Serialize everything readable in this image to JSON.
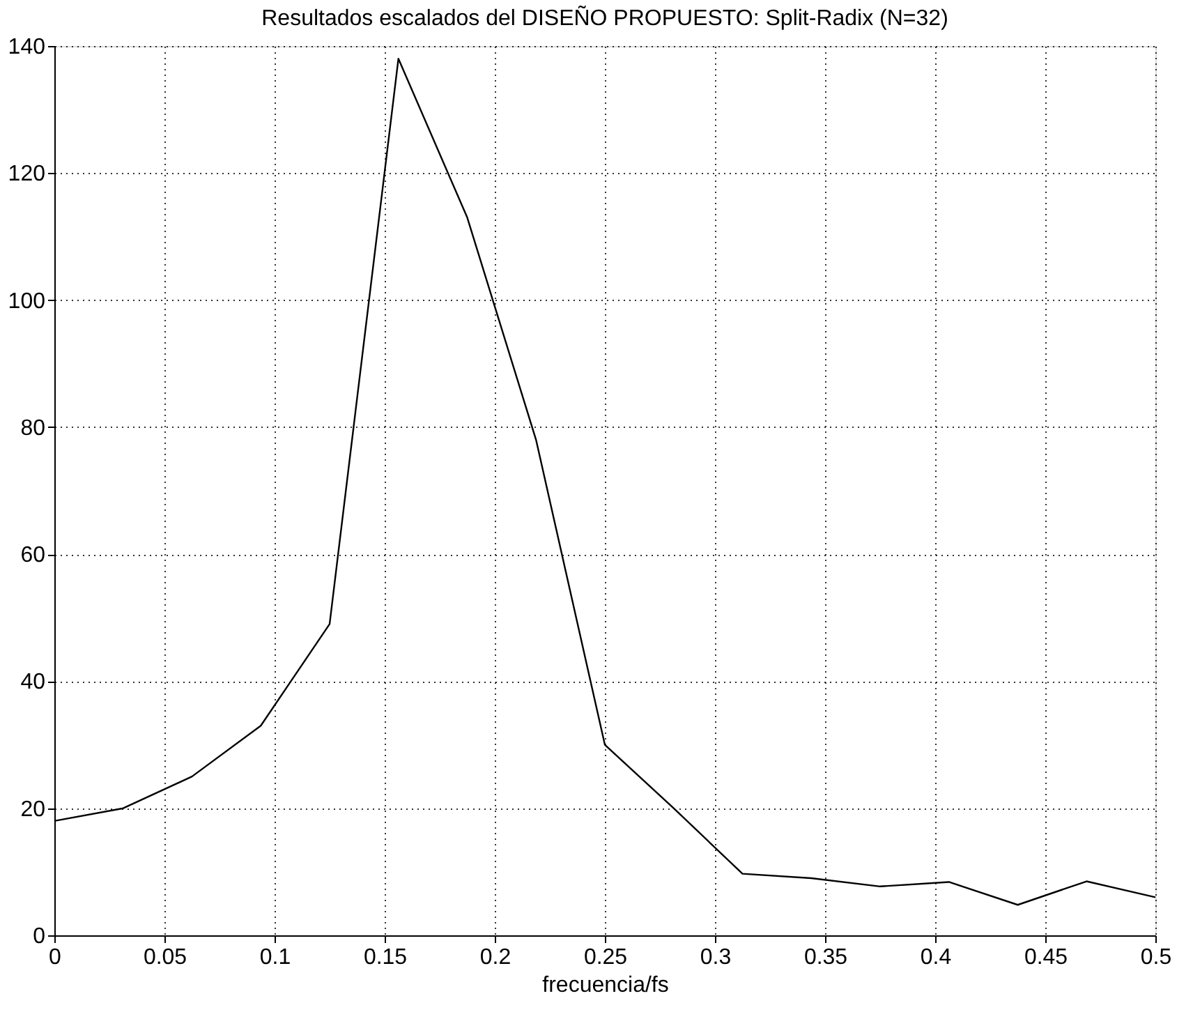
{
  "chart_data": {
    "type": "line",
    "title": "Resultados escalados del DISEÑO PROPUESTO: Split-Radix (N=32)",
    "xlabel": "frecuencia/fs",
    "x": [
      0,
      0.03125,
      0.0625,
      0.09375,
      0.125,
      0.15625,
      0.1875,
      0.21875,
      0.25,
      0.28125,
      0.3125,
      0.34375,
      0.375,
      0.40625,
      0.4375,
      0.46875,
      0.5
    ],
    "series": [
      {
        "color": "#000000",
        "values": [
          18,
          20,
          25,
          33,
          49,
          138,
          113,
          78,
          30,
          20,
          9.7,
          9,
          7.7,
          8.4,
          4.8,
          8.5,
          6
        ]
      }
    ],
    "xlim": [
      0,
      0.5
    ],
    "xticks": [
      0,
      0.05,
      0.1,
      0.15,
      0.2,
      0.25,
      0.3,
      0.35,
      0.4,
      0.45,
      0.5
    ],
    "ylim": [
      0,
      140
    ],
    "yticks": [
      0,
      20,
      40,
      60,
      80,
      100,
      120,
      140
    ],
    "grid": true,
    "marker": "none",
    "line_style": "solid"
  }
}
